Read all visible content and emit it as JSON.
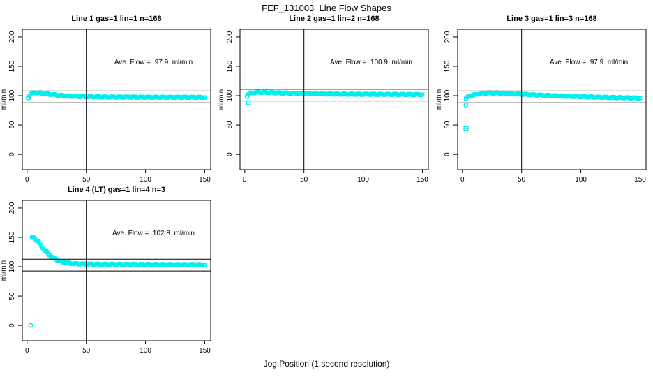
{
  "figure": {
    "title": "FEF_131003  Line Flow Shapes",
    "xlabel": "Jog Position (1 second resolution)",
    "ylabel": "ml/min",
    "accent_color": "#00EEEE",
    "line_color": "#000000"
  },
  "chart_data": [
    {
      "type": "scatter",
      "title": "Line 1 gas=1 lin=1 n=168",
      "annotation": "Ave. Flow =  97.9  ml/min",
      "ave_flow_ml_min": 97.9,
      "x_ticks": [
        0,
        50,
        100,
        150
      ],
      "y_ticks": [
        0,
        50,
        100,
        150,
        200
      ],
      "xlim": [
        -4,
        155
      ],
      "ylim": [
        -26,
        213
      ],
      "vline_x": 50,
      "hlines": [
        107.9,
        87.9
      ],
      "grid": false,
      "series": {
        "name": "line1-flow",
        "points": [
          [
            1,
            96.5
          ],
          [
            2,
            101
          ],
          [
            3,
            103
          ],
          [
            4,
            104
          ],
          [
            5,
            104.6
          ],
          [
            6,
            104.9
          ],
          [
            8,
            105
          ],
          [
            10,
            104.8
          ],
          [
            12,
            104.3
          ],
          [
            14,
            103.8
          ],
          [
            16,
            103.3
          ],
          [
            18,
            102.8
          ],
          [
            20,
            102.3
          ],
          [
            23,
            101.6
          ],
          [
            26,
            100.9
          ],
          [
            30,
            100.2
          ],
          [
            34,
            99.6
          ],
          [
            38,
            99.2
          ],
          [
            42,
            98.8
          ],
          [
            46,
            98.6
          ],
          [
            50,
            98.4
          ],
          [
            55,
            98.2
          ],
          [
            60,
            98
          ],
          [
            65,
            97.9
          ],
          [
            70,
            97.8
          ],
          [
            75,
            97.7
          ],
          [
            80,
            97.7
          ],
          [
            85,
            97.6
          ],
          [
            90,
            97.6
          ],
          [
            95,
            97.5
          ],
          [
            100,
            97.5
          ],
          [
            105,
            97.4
          ],
          [
            110,
            97.4
          ],
          [
            120,
            97.3
          ],
          [
            130,
            97.3
          ],
          [
            140,
            97.2
          ],
          [
            150,
            97.2
          ]
        ]
      },
      "outliers": [
        [
          1,
          96.5,
          "ci"
        ]
      ]
    },
    {
      "type": "scatter",
      "title": "Line 2 gas=1 lin=2 n=168",
      "annotation": "Ave. Flow =  100.9  ml/min",
      "ave_flow_ml_min": 100.9,
      "x_ticks": [
        0,
        50,
        100,
        150
      ],
      "y_ticks": [
        0,
        50,
        100,
        150,
        200
      ],
      "xlim": [
        -4,
        155
      ],
      "ylim": [
        -26,
        213
      ],
      "vline_x": 50,
      "hlines": [
        110.9,
        90.9
      ],
      "grid": false,
      "series": {
        "name": "line2-flow",
        "points": [
          [
            2,
            99.5
          ],
          [
            3,
            102
          ],
          [
            4,
            103.5
          ],
          [
            5,
            104.4
          ],
          [
            6,
            104.9
          ],
          [
            8,
            105.4
          ],
          [
            10,
            105.6
          ],
          [
            12,
            105.7
          ],
          [
            14,
            105.6
          ],
          [
            16,
            105.5
          ],
          [
            18,
            105.4
          ],
          [
            20,
            105.3
          ],
          [
            23,
            105.1
          ],
          [
            26,
            104.9
          ],
          [
            30,
            104.6
          ],
          [
            34,
            104.4
          ],
          [
            38,
            104.1
          ],
          [
            42,
            103.9
          ],
          [
            46,
            103.8
          ],
          [
            50,
            103.6
          ],
          [
            55,
            103.4
          ],
          [
            60,
            103.3
          ],
          [
            65,
            103.1
          ],
          [
            70,
            103
          ],
          [
            75,
            102.9
          ],
          [
            80,
            102.8
          ],
          [
            85,
            102.7
          ],
          [
            90,
            102.6
          ],
          [
            95,
            102.5
          ],
          [
            100,
            102.4
          ],
          [
            105,
            102.4
          ],
          [
            110,
            102.3
          ],
          [
            120,
            102.2
          ],
          [
            130,
            102.1
          ],
          [
            140,
            102
          ],
          [
            150,
            102
          ]
        ]
      },
      "outliers": [
        [
          3,
          88,
          "sq"
        ],
        [
          2,
          98.5,
          "ci"
        ]
      ]
    },
    {
      "type": "scatter",
      "title": "Line 3 gas=1 lin=3 n=168",
      "annotation": "Ave. Flow =  97.9  ml/min",
      "ave_flow_ml_min": 97.9,
      "x_ticks": [
        0,
        50,
        100,
        150
      ],
      "y_ticks": [
        0,
        50,
        100,
        150,
        200
      ],
      "xlim": [
        -4,
        155
      ],
      "ylim": [
        -26,
        213
      ],
      "vline_x": 50,
      "hlines": [
        107.9,
        87.9
      ],
      "grid": false,
      "series": {
        "name": "line3-flow",
        "points": [
          [
            3,
            95
          ],
          [
            4,
            96.5
          ],
          [
            5,
            97.6
          ],
          [
            6,
            98.6
          ],
          [
            8,
            100.1
          ],
          [
            10,
            101.3
          ],
          [
            12,
            102.3
          ],
          [
            14,
            103.1
          ],
          [
            16,
            103.7
          ],
          [
            18,
            104.1
          ],
          [
            20,
            104.4
          ],
          [
            23,
            104.6
          ],
          [
            26,
            104.6
          ],
          [
            30,
            104.4
          ],
          [
            34,
            104.1
          ],
          [
            38,
            103.7
          ],
          [
            42,
            103.3
          ],
          [
            46,
            102.9
          ],
          [
            50,
            102.4
          ],
          [
            55,
            101.9
          ],
          [
            60,
            101.4
          ],
          [
            65,
            100.9
          ],
          [
            70,
            100.5
          ],
          [
            75,
            100
          ],
          [
            80,
            99.6
          ],
          [
            85,
            99.3
          ],
          [
            90,
            98.9
          ],
          [
            95,
            98.6
          ],
          [
            100,
            98.3
          ],
          [
            105,
            98
          ],
          [
            110,
            97.7
          ],
          [
            115,
            97.4
          ],
          [
            120,
            97.2
          ],
          [
            125,
            96.9
          ],
          [
            130,
            96.7
          ],
          [
            135,
            96.5
          ],
          [
            140,
            96.3
          ],
          [
            145,
            96.1
          ],
          [
            150,
            96
          ]
        ]
      },
      "outliers": [
        [
          3,
          44,
          "sq"
        ],
        [
          3,
          84,
          "ci"
        ]
      ]
    },
    {
      "type": "scatter",
      "title": "Line 4 (LT) gas=1 lin=4 n=3",
      "annotation": "Ave. Flow =  102.8  ml/min",
      "ave_flow_ml_min": 102.8,
      "x_ticks": [
        0,
        50,
        100,
        150
      ],
      "y_ticks": [
        0,
        50,
        100,
        150,
        200
      ],
      "xlim": [
        -4,
        155
      ],
      "ylim": [
        -26,
        213
      ],
      "vline_x": 50,
      "hlines": [
        112.8,
        92.8
      ],
      "grid": false,
      "series": {
        "name": "line4-flow",
        "points": [
          [
            4,
            148.5
          ],
          [
            5,
            150
          ],
          [
            6,
            149.2
          ],
          [
            7,
            147.5
          ],
          [
            8,
            145.5
          ],
          [
            9,
            143.2
          ],
          [
            10,
            140.7
          ],
          [
            11,
            138.2
          ],
          [
            12,
            135.6
          ],
          [
            13,
            133
          ],
          [
            14,
            130.5
          ],
          [
            15,
            128.1
          ],
          [
            16,
            125.9
          ],
          [
            17,
            123.8
          ],
          [
            18,
            121.8
          ],
          [
            19,
            120
          ],
          [
            20,
            118.3
          ],
          [
            22,
            115.4
          ],
          [
            24,
            113
          ],
          [
            26,
            111
          ],
          [
            28,
            109.4
          ],
          [
            30,
            108.1
          ],
          [
            33,
            106.8
          ],
          [
            36,
            105.9
          ],
          [
            40,
            105.2
          ],
          [
            45,
            104.8
          ],
          [
            50,
            104.6
          ],
          [
            55,
            104.4
          ],
          [
            60,
            104.3
          ],
          [
            65,
            104.2
          ],
          [
            70,
            104.2
          ],
          [
            75,
            104.1
          ],
          [
            80,
            104.1
          ],
          [
            85,
            104
          ],
          [
            90,
            104
          ],
          [
            95,
            103.9
          ],
          [
            100,
            103.9
          ],
          [
            105,
            103.8
          ],
          [
            110,
            103.8
          ],
          [
            115,
            103.7
          ],
          [
            120,
            103.7
          ],
          [
            125,
            103.7
          ],
          [
            130,
            103.6
          ],
          [
            135,
            103.6
          ],
          [
            140,
            103.6
          ],
          [
            145,
            103.5
          ],
          [
            150,
            103.5
          ]
        ]
      },
      "outliers": [
        [
          3,
          0,
          "ci"
        ]
      ]
    }
  ]
}
